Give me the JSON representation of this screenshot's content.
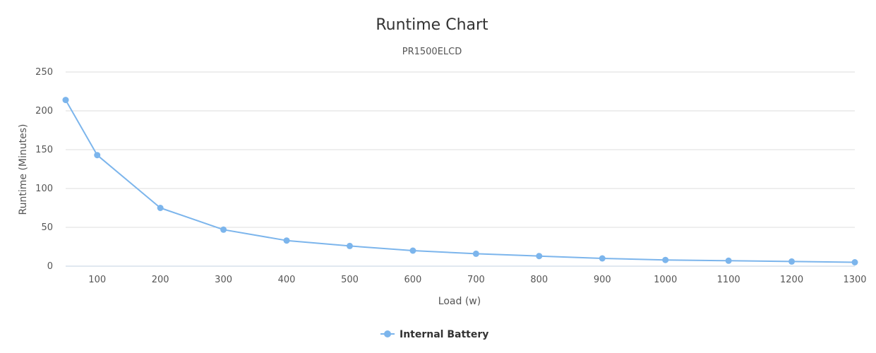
{
  "chart_data": {
    "type": "line",
    "title": "Runtime Chart",
    "subtitle": "PR1500ELCD",
    "xlabel": "Load (w)",
    "ylabel": "Runtime (Minutes)",
    "xlim": [
      50,
      1300
    ],
    "ylim": [
      0,
      250
    ],
    "x_ticks": [
      100,
      200,
      300,
      400,
      500,
      600,
      700,
      800,
      900,
      1000,
      1100,
      1200,
      1300
    ],
    "y_ticks": [
      0,
      50,
      100,
      150,
      200,
      250
    ],
    "grid": true,
    "legend_position": "bottom-center",
    "series": [
      {
        "name": "Internal Battery",
        "color": "#7cb5ec",
        "x": [
          50,
          100,
          200,
          300,
          400,
          500,
          600,
          700,
          800,
          900,
          1000,
          1100,
          1200,
          1300
        ],
        "y": [
          214,
          143,
          75,
          47,
          33,
          26,
          20,
          16,
          13,
          10,
          8,
          7,
          6,
          5
        ]
      }
    ]
  }
}
